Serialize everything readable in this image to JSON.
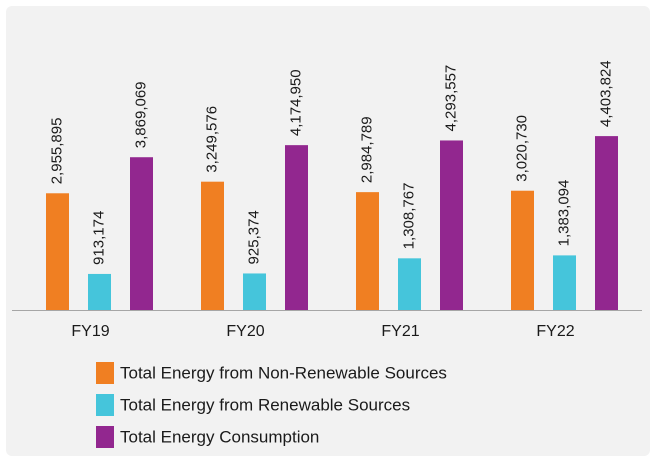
{
  "chart_data": {
    "type": "bar",
    "categories": [
      "FY19",
      "FY20",
      "FY21",
      "FY22"
    ],
    "series": [
      {
        "name": "Total Energy from Non-Renewable Sources",
        "color": "#f07f22",
        "values": [
          2955895,
          3249576,
          2984789,
          3020730
        ],
        "value_labels": [
          "2,955,895",
          "3,249,576",
          "2,984,789",
          "3,020,730"
        ]
      },
      {
        "name": "Total Energy from Renewable Sources",
        "color": "#45c5db",
        "values": [
          913174,
          925374,
          1308767,
          1383094
        ],
        "value_labels": [
          "913,174",
          "925,374",
          "1,308,767",
          "1,383,094"
        ]
      },
      {
        "name": "Total Energy Consumption",
        "color": "#92278f",
        "values": [
          3869069,
          4174950,
          4293557,
          4403824
        ],
        "value_labels": [
          "3,869,069",
          "4,174,950",
          "4,293,557",
          "4,403,824"
        ]
      }
    ],
    "ylim": [
      0,
      7800000
    ],
    "legend": "bottom"
  }
}
